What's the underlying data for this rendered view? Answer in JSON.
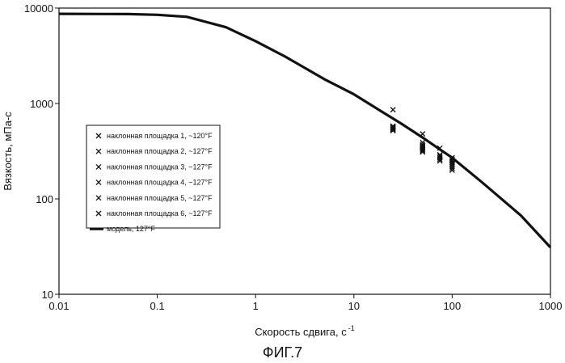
{
  "chart_data": {
    "type": "scatter",
    "xscale": "log",
    "yscale": "log",
    "xlim": [
      0.01,
      1000
    ],
    "ylim": [
      10,
      10000
    ],
    "xlabel": "Скорость сдвига, с",
    "xlabel_sup": "-1",
    "ylabel": "Вязкость, мПа-с",
    "x_ticks": [
      "0.01",
      "0.1",
      "1",
      "10",
      "100",
      "1000"
    ],
    "y_ticks": [
      "10",
      "100",
      "1000",
      "10000"
    ],
    "x_tick_values": [
      0.01,
      0.1,
      1,
      10,
      100,
      1000
    ],
    "y_tick_values": [
      10,
      100,
      1000,
      10000
    ],
    "legend_position": "left-middle",
    "series": [
      {
        "name": "наклонная площадка 1, ~120",
        "unit": "°F",
        "marker": "x",
        "points": [
          [
            25,
            860
          ],
          [
            25,
            570
          ],
          [
            25,
            540
          ],
          [
            50,
            480
          ],
          [
            50,
            390
          ],
          [
            50,
            340
          ],
          [
            75,
            340
          ],
          [
            100,
            270
          ],
          [
            100,
            230
          ]
        ]
      },
      {
        "name": "наклонная площадка 2, ~127",
        "unit": "°F",
        "marker": "x",
        "points": [
          [
            25,
            560
          ],
          [
            50,
            370
          ],
          [
            50,
            320
          ],
          [
            75,
            290
          ],
          [
            100,
            250
          ],
          [
            100,
            220
          ]
        ]
      },
      {
        "name": "наклонная площадка 3, ~127",
        "unit": "°F",
        "marker": "x",
        "points": [
          [
            25,
            550
          ],
          [
            50,
            360
          ],
          [
            75,
            280
          ],
          [
            100,
            240
          ]
        ]
      },
      {
        "name": "наклонная площадка 4, ~127",
        "unit": "°F",
        "marker": "x",
        "points": [
          [
            25,
            530
          ],
          [
            50,
            350
          ],
          [
            50,
            310
          ],
          [
            75,
            270
          ],
          [
            100,
            260
          ],
          [
            100,
            210
          ]
        ]
      },
      {
        "name": "наклонная площадка 5, ~127",
        "unit": "°F",
        "marker": "x",
        "points": [
          [
            25,
            520
          ],
          [
            50,
            340
          ],
          [
            75,
            260
          ],
          [
            100,
            230
          ]
        ]
      },
      {
        "name": "наклонная площадка 6, ~127",
        "unit": "°F",
        "marker": "x",
        "points": [
          [
            25,
            580
          ],
          [
            50,
            330
          ],
          [
            75,
            250
          ],
          [
            100,
            200
          ]
        ]
      },
      {
        "name": "модель, 127",
        "unit": "°F",
        "marker": "line",
        "points": [
          [
            0.01,
            8700
          ],
          [
            0.05,
            8650
          ],
          [
            0.1,
            8500
          ],
          [
            0.2,
            8100
          ],
          [
            0.5,
            6300
          ],
          [
            1,
            4500
          ],
          [
            2,
            3100
          ],
          [
            5,
            1800
          ],
          [
            10,
            1250
          ],
          [
            20,
            800
          ],
          [
            30,
            620
          ],
          [
            50,
            440
          ],
          [
            75,
            330
          ],
          [
            100,
            270
          ],
          [
            200,
            150
          ],
          [
            500,
            67
          ],
          [
            1000,
            31
          ]
        ]
      }
    ]
  },
  "figure_caption": "ФИГ.7"
}
